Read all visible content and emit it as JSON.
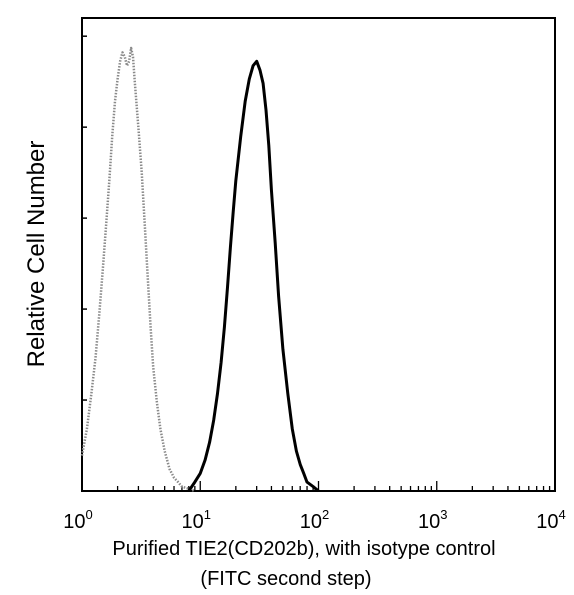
{
  "chart_data": {
    "type": "line",
    "xscale": "log",
    "xlim": [
      1,
      10000
    ],
    "ylim": [
      0,
      100
    ],
    "ylabel": "Relative Cell Number",
    "xlabel_line1": "Purified TIE2(CD202b), with isotype control",
    "xlabel_line2": "(FITC second step)",
    "x_ticks": [
      {
        "base": "10",
        "exp": "0",
        "value": 1
      },
      {
        "base": "10",
        "exp": "1",
        "value": 10
      },
      {
        "base": "10",
        "exp": "2",
        "value": 100
      },
      {
        "base": "10",
        "exp": "3",
        "value": 1000
      },
      {
        "base": "10",
        "exp": "4",
        "value": 10000
      }
    ],
    "grid": false,
    "series": [
      {
        "style": "dotted-gray",
        "color": "#8a8a8a",
        "x": [
          1.0,
          1.1,
          1.2,
          1.3,
          1.4,
          1.5,
          1.6,
          1.7,
          1.8,
          1.9,
          2.0,
          2.1,
          2.2,
          2.3,
          2.4,
          2.5,
          2.6,
          2.7,
          2.8,
          3.0,
          3.2,
          3.4,
          3.6,
          3.8,
          4.0,
          4.3,
          4.6,
          5.0,
          5.5,
          6.0,
          6.5,
          7.0,
          8.0,
          9.0
        ],
        "y": [
          8,
          14,
          22,
          30,
          40,
          50,
          60,
          70,
          80,
          88,
          93,
          97,
          99,
          98,
          96,
          97,
          100,
          98,
          92,
          82,
          72,
          60,
          48,
          37,
          28,
          20,
          14,
          9,
          5,
          3,
          2,
          1,
          0.5,
          0
        ]
      },
      {
        "style": "solid-black",
        "color": "#000000",
        "x": [
          8,
          9,
          10,
          11,
          12,
          13,
          14,
          15,
          16,
          17,
          18,
          19,
          20,
          22,
          24,
          26,
          28,
          30,
          32,
          34,
          36,
          38,
          40,
          43,
          46,
          50,
          55,
          60,
          65,
          70,
          75,
          80,
          90,
          100
        ],
        "y": [
          0,
          2,
          4,
          7,
          11,
          16,
          22,
          29,
          37,
          46,
          55,
          63,
          70,
          80,
          88,
          93,
          96,
          97,
          95,
          92,
          86,
          78,
          68,
          56,
          44,
          32,
          22,
          14,
          9,
          6,
          4,
          2,
          1,
          0
        ]
      }
    ]
  }
}
